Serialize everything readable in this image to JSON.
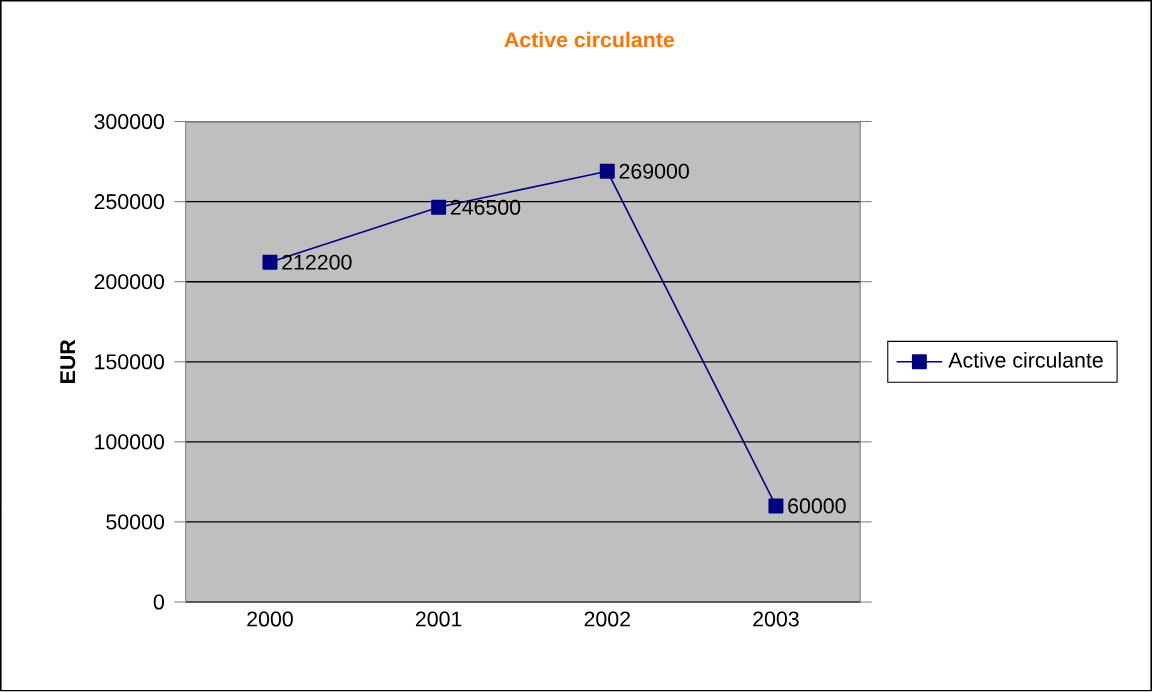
{
  "chart_data": {
    "type": "line",
    "title": "Active circulante",
    "ylabel": "EUR",
    "categories": [
      "2000",
      "2001",
      "2002",
      "2003"
    ],
    "series": [
      {
        "name": "Active circulante",
        "color": "#000080",
        "values": [
          212200,
          246500,
          269000,
          60000
        ]
      }
    ],
    "ylim": [
      0,
      300000
    ],
    "yticks": [
      0,
      50000,
      100000,
      150000,
      200000,
      250000,
      300000
    ],
    "grid": "y",
    "legend": "right",
    "marker": "square",
    "line_style": "solid",
    "data_labels": true
  }
}
